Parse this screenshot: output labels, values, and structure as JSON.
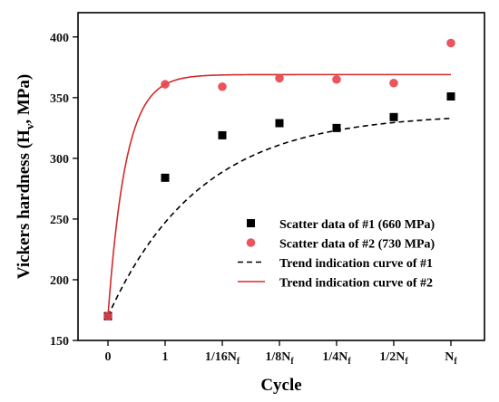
{
  "chart_data": {
    "type": "scatter",
    "title": "",
    "xlabel": "Cycle",
    "ylabel": "Vickers hardness (H",
    "ylabel_sub": "v",
    "ylabel_tail": ", MPa)",
    "ylim": [
      150,
      420
    ],
    "yticks": [
      150,
      200,
      250,
      300,
      350,
      400
    ],
    "categories": [
      {
        "text": "0",
        "sub": ""
      },
      {
        "text": "1",
        "sub": ""
      },
      {
        "text": "1/16N",
        "sub": "f"
      },
      {
        "text": "1/8N",
        "sub": "f"
      },
      {
        "text": "1/4N",
        "sub": "f"
      },
      {
        "text": "1/2N",
        "sub": "f"
      },
      {
        "text": "N",
        "sub": "f"
      }
    ],
    "grid": false,
    "legend_position": "bottom-right",
    "series": [
      {
        "name": "Scatter data of #1 (660 MPa)",
        "kind": "scatter",
        "marker": "square",
        "color": "#000000",
        "values": [
          170,
          284,
          319,
          329,
          325,
          334,
          351
        ]
      },
      {
        "name": "Scatter data of #2 (730 MPa)",
        "kind": "scatter",
        "marker": "circle",
        "color": "#e8434b",
        "values": [
          170,
          361,
          359,
          366,
          365,
          362,
          395
        ]
      },
      {
        "name": "Trend indication curve of #1",
        "kind": "line",
        "dash": "dashed",
        "color": "#000000",
        "model": {
          "start": 170,
          "plateau": 337,
          "rate": 0.62
        }
      },
      {
        "name": "Trend indication curve of #2",
        "kind": "line",
        "dash": "solid",
        "color": "#d42a2a",
        "model": {
          "start": 170,
          "plateau": 369,
          "rate": 3.2
        }
      }
    ]
  }
}
